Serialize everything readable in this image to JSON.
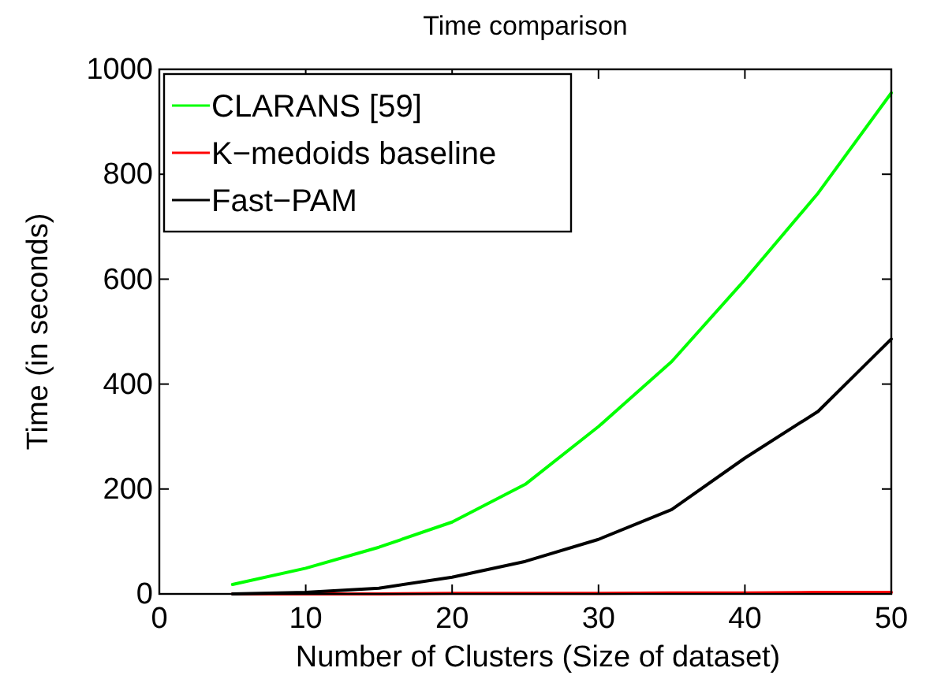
{
  "chart_data": {
    "type": "line",
    "title": "Time comparison",
    "xlabel": "Number of Clusters (Size of dataset)",
    "ylabel": "Time (in seconds)",
    "x": [
      5,
      10,
      15,
      20,
      25,
      30,
      35,
      40,
      45,
      50
    ],
    "series": [
      {
        "name": "CLARANS [59]",
        "color": "#00ff00",
        "values": [
          18,
          49,
          89,
          137,
          209,
          319,
          443,
          599,
          764,
          955
        ]
      },
      {
        "name": "K−medoids baseline",
        "color": "#ff0000",
        "values": [
          0,
          0,
          0,
          1,
          1,
          1,
          2,
          2,
          3,
          3
        ]
      },
      {
        "name": "Fast−PAM",
        "color": "#000000",
        "values": [
          0,
          3,
          11,
          32,
          62,
          104,
          161,
          259,
          348,
          486
        ]
      }
    ],
    "xlim": [
      0,
      50
    ],
    "ylim": [
      0,
      1000
    ],
    "xticks": [
      0,
      10,
      20,
      30,
      40,
      50
    ],
    "yticks": [
      0,
      200,
      400,
      600,
      800,
      1000
    ],
    "legend": "top left",
    "grid": false
  }
}
